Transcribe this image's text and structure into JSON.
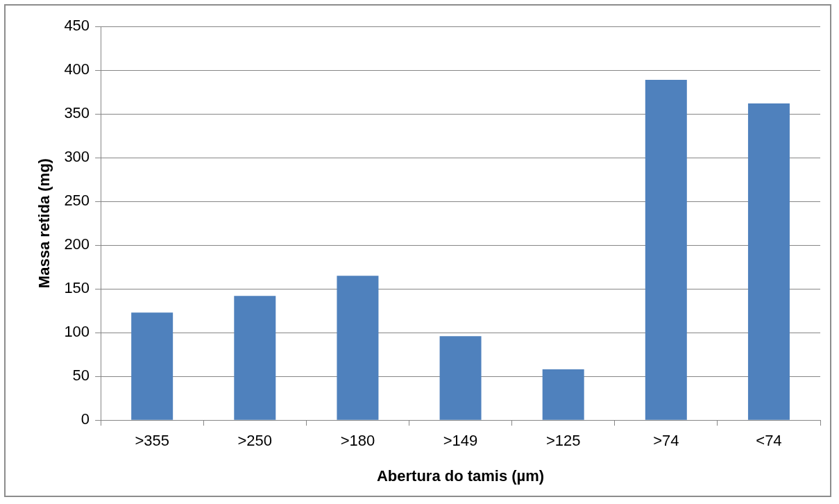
{
  "chart_data": {
    "type": "bar",
    "xlabel": "Abertura do tamis (µm)",
    "ylabel": "Massa retida (mg)",
    "categories": [
      ">355",
      ">250",
      ">180",
      ">149",
      ">125",
      ">74",
      "<74"
    ],
    "values": [
      123,
      142,
      165,
      96,
      58,
      389,
      362
    ],
    "color": "#4f81bd",
    "ylim": [
      0,
      450
    ],
    "yticks": [
      0,
      50,
      100,
      150,
      200,
      250,
      300,
      350,
      400,
      450
    ],
    "grid": "y",
    "legend": false
  }
}
